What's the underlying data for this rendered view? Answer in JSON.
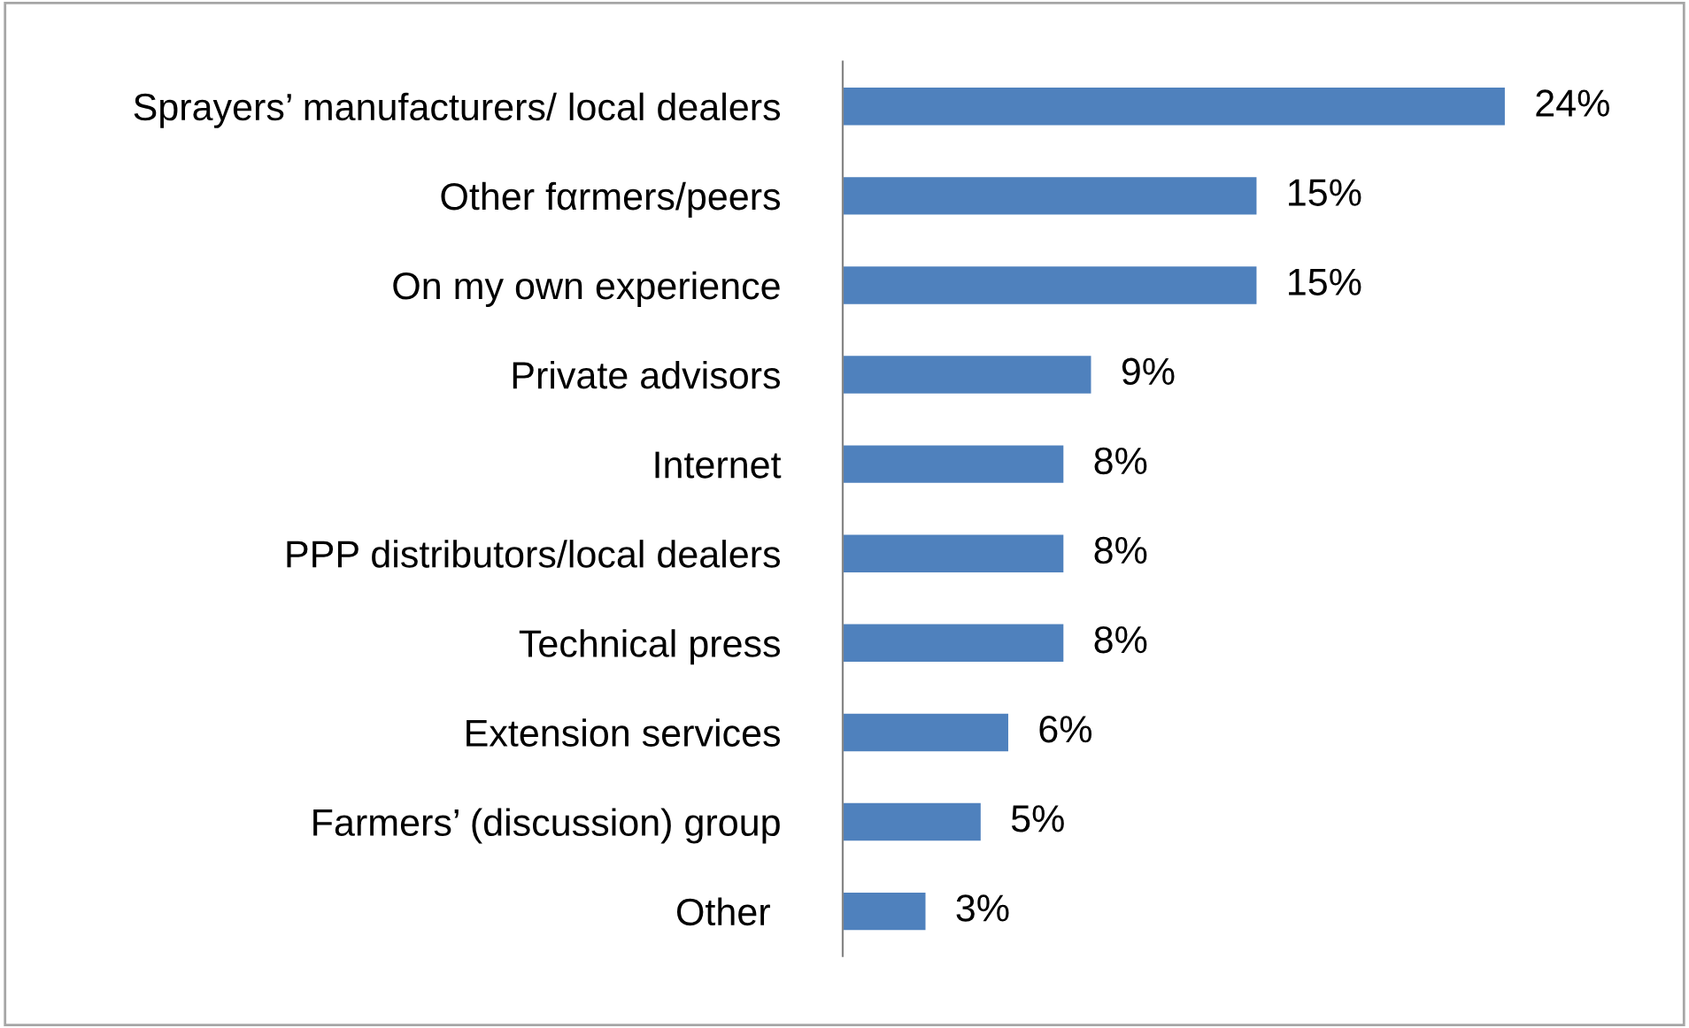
{
  "chart_data": {
    "type": "bar",
    "orientation": "horizontal",
    "categories": [
      "Sprayers’ manufacturers/ local dealers",
      "Other fαrmers/peers",
      "On my own experience",
      "Private advisors",
      "Internet",
      "PPP distributors/local dealers",
      "Technical press",
      "Extension services",
      "Farmers’ (discussion) group",
      "Other "
    ],
    "values": [
      24,
      15,
      15,
      9,
      8,
      8,
      8,
      6,
      5,
      3
    ],
    "value_labels": [
      "24%",
      "15%",
      "15%",
      "9%",
      "8%",
      "8%",
      "8%",
      "6%",
      "5%",
      "3%"
    ],
    "color": "#4f81bd",
    "tick_labels": "y",
    "grid": false,
    "legend": false
  }
}
